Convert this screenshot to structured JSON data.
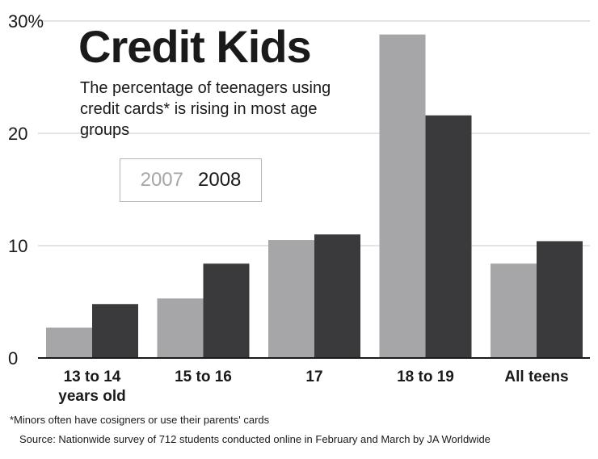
{
  "chart_data": {
    "type": "bar",
    "title": "Credit Kids",
    "subtitle": "The percentage of teenagers using credit cards* is rising in most age groups",
    "categories": [
      [
        "13 to 14",
        "years old"
      ],
      [
        "15 to 16"
      ],
      [
        "17"
      ],
      [
        "18 to 19"
      ],
      [
        "All teens"
      ]
    ],
    "series": [
      {
        "name": "2007",
        "color": "#a6a6a8",
        "values": [
          2.7,
          5.3,
          10.5,
          28.8,
          8.4
        ]
      },
      {
        "name": "2008",
        "color": "#3a3a3c",
        "values": [
          4.8,
          8.4,
          11.0,
          21.6,
          10.4
        ]
      }
    ],
    "ylim": [
      0,
      30
    ],
    "yticks": [
      {
        "value": 0,
        "label": "0"
      },
      {
        "value": 10,
        "label": "10"
      },
      {
        "value": 20,
        "label": "20"
      },
      {
        "value": 30,
        "label": "30%"
      }
    ],
    "xlabel": "",
    "ylabel": "",
    "grid": true,
    "legend_position": "top-left"
  },
  "footnote": "*Minors often have cosigners or use their parents' cards",
  "source": "Source: Nationwide survey of 712 students conducted online in February and March by JA Worldwide",
  "colors": {
    "gridline": "#c8c8c8",
    "axis": "#1a1a1a"
  }
}
